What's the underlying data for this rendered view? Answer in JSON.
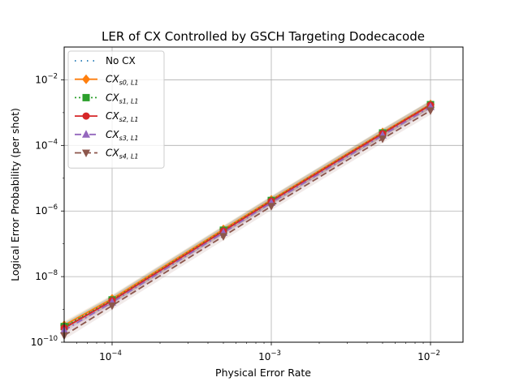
{
  "chart_data": {
    "type": "line",
    "title": "LER of CX Controlled by GSCH Targeting Dodecacode",
    "xlabel": "Physical Error Rate",
    "ylabel": "Logical Error Probability (per shot)",
    "xscale": "log",
    "yscale": "log",
    "xlim": [
      5e-05,
      0.016
    ],
    "ylim": [
      1e-10,
      0.1
    ],
    "grid": true,
    "legend_position": "top-left",
    "xticks": [
      {
        "base": "10",
        "exp": "−4",
        "value": 0.0001
      },
      {
        "base": "10",
        "exp": "−3",
        "value": 0.001
      },
      {
        "base": "10",
        "exp": "−2",
        "value": 0.01
      }
    ],
    "yticks": [
      {
        "base": "10",
        "exp": "−10",
        "value": 1e-10
      },
      {
        "base": "10",
        "exp": "−8",
        "value": 1e-08
      },
      {
        "base": "10",
        "exp": "−6",
        "value": 1e-06
      },
      {
        "base": "10",
        "exp": "−4",
        "value": 0.0001
      },
      {
        "base": "10",
        "exp": "−2",
        "value": 0.01
      }
    ],
    "x": [
      5e-05,
      0.0001,
      0.0005,
      0.001,
      0.005,
      0.01
    ],
    "series": [
      {
        "name": "No CX",
        "name_main": "No CX",
        "name_sub": "",
        "color": "#1f77b4",
        "dash": "1.5,6",
        "marker": "none",
        "values": [
          3e-10,
          2e-09,
          2.6e-07,
          2.1e-06,
          0.00024,
          0.00175
        ]
      },
      {
        "name": "CX_{s0,L1}",
        "name_main": "CX",
        "name_sub": "s0, L1",
        "color": "#ff7f0e",
        "dash": "none",
        "marker": "diamond",
        "values": [
          3.3e-10,
          2.1e-09,
          2.75e-07,
          2.2e-06,
          0.00025,
          0.0018
        ]
      },
      {
        "name": "CX_{s1,L1}",
        "name_main": "CX",
        "name_sub": "s1, L1",
        "color": "#2ca02c",
        "dash": "2,3",
        "marker": "square",
        "values": [
          3e-10,
          1.95e-09,
          2.6e-07,
          2.1e-06,
          0.00024,
          0.00175
        ]
      },
      {
        "name": "CX_{s2,L1}",
        "name_main": "CX",
        "name_sub": "s2, L1",
        "color": "#d62728",
        "dash": "none",
        "marker": "circle",
        "values": [
          2.7e-10,
          1.85e-09,
          2.45e-07,
          2e-06,
          0.00023,
          0.0017
        ]
      },
      {
        "name": "CX_{s3,L1}",
        "name_main": "CX",
        "name_sub": "s3, L1",
        "color": "#9467bd",
        "dash": "8,4,2,4",
        "marker": "triangle-up",
        "values": [
          2.3e-10,
          1.65e-09,
          2.2e-07,
          1.8e-06,
          0.000205,
          0.0015
        ]
      },
      {
        "name": "CX_{s4,L1}",
        "name_main": "CX",
        "name_sub": "s4, L1",
        "color": "#8c564b",
        "dash": "8,4",
        "marker": "triangle-down",
        "values": [
          1.6e-10,
          1.3e-09,
          1.7e-07,
          1.4e-06,
          0.00016,
          0.00115
        ]
      }
    ]
  }
}
